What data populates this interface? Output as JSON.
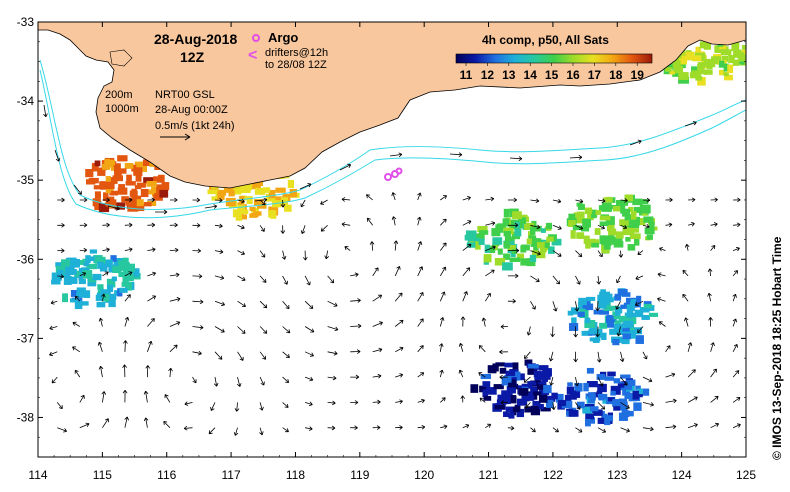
{
  "title": {
    "date": "28-Aug-2018",
    "time": "12Z"
  },
  "legend": {
    "argo_label": "Argo",
    "drifters_label": "drifters@12h",
    "drifters_range": "to 28/08 12Z",
    "contour_200": "200m",
    "contour_1000": "1000m",
    "product": "NRT00 GSL",
    "product_time": "28-Aug 00:00Z",
    "scale_label": "0.5m/s (1kt 24h)",
    "colorbar_title": "4h comp, p50, All Sats",
    "colorbar_ticks": [
      "11",
      "12",
      "13",
      "14",
      "15",
      "16",
      "17",
      "18",
      "19"
    ],
    "colorbar_colors": [
      "#00005a",
      "#0a1aa6",
      "#1f6fe0",
      "#1fb0d8",
      "#27c8a0",
      "#3fcf4a",
      "#9fdc2a",
      "#e8e020",
      "#f3a614",
      "#e2560f",
      "#9a1b0a"
    ]
  },
  "axes": {
    "lon_ticks": [
      "114",
      "115",
      "116",
      "117",
      "118",
      "119",
      "120",
      "121",
      "122",
      "123",
      "124",
      "125"
    ],
    "lat_ticks": [
      "-33",
      "-34",
      "-35",
      "-36",
      "-37",
      "-38"
    ]
  },
  "credit": "© IMOS 13-Sep-2018 18:25 Hobart Time",
  "colors": {
    "land": "#f9c79d",
    "ocean": "#ffffff",
    "contour": "#37d8e8",
    "argo": "#e04fe8"
  },
  "map_data": {
    "lon_range": [
      114,
      125
    ],
    "lat_range": [
      -38.5,
      -33
    ],
    "sst_patches": [
      {
        "lon": 122.7,
        "lat": -37.7,
        "temp": 12.2
      },
      {
        "lon": 121.4,
        "lat": -37.6,
        "temp": 11.3
      },
      {
        "lon": 122.9,
        "lat": -36.7,
        "temp": 13.4
      },
      {
        "lon": 121.3,
        "lat": -35.7,
        "temp": 15.3
      },
      {
        "lon": 122.9,
        "lat": -35.5,
        "temp": 15.6
      },
      {
        "lon": 115.3,
        "lat": -35.0,
        "temp": 18.9
      },
      {
        "lon": 117.3,
        "lat": -35.1,
        "temp": 17.6
      },
      {
        "lon": 114.8,
        "lat": -36.2,
        "temp": 13.6
      },
      {
        "lon": 124.3,
        "lat": -33.4,
        "temp": 16.3
      }
    ]
  }
}
